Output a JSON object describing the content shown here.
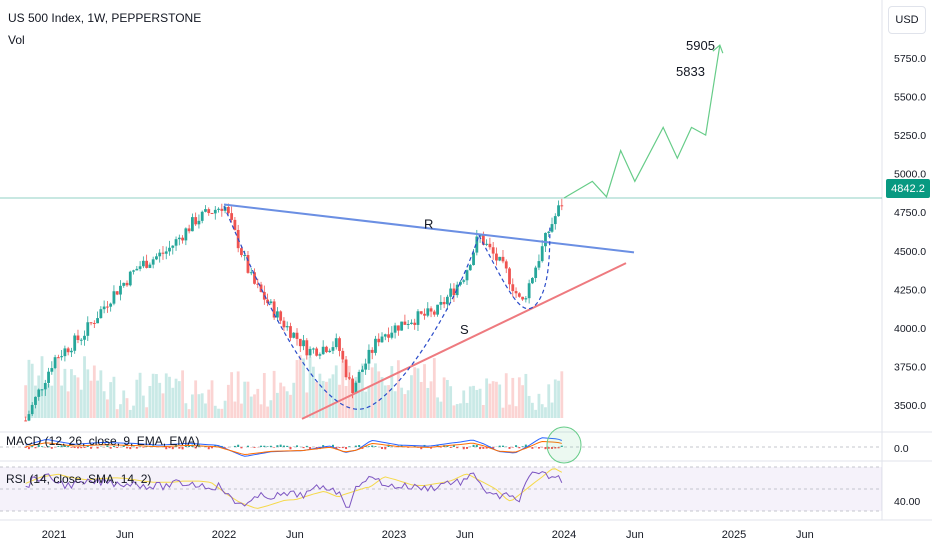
{
  "header": {
    "symbol_title": "US 500 Index, 1W, PEPPERSTONE",
    "volume_label": "Vol",
    "currency": "USD"
  },
  "colors": {
    "up": "#26a69a",
    "down": "#ef5350",
    "resistance": "#6b8fe3",
    "support": "#ee7a7f",
    "cup": "#2b4cc9",
    "projection": "#66cc88",
    "last_price": "#089981"
  },
  "indicators": {
    "macd_label": "MACD (12, 26, close, 9, EMA, EMA)",
    "rsi_label": "RSI (14, close, SMA, 14, 2)"
  },
  "chart_data": {
    "type": "candlestick",
    "symbol": "US 500 Index",
    "interval": "1W",
    "ylim": [
      3300,
      5950
    ],
    "y_ticks": [
      "5750.0",
      "5500.0",
      "5250.0",
      "5000.0",
      "4750.0",
      "4500.0",
      "4250.0",
      "4000.0",
      "3750.0",
      "3500.0"
    ],
    "x_ticks": [
      "2021",
      "Jun",
      "2022",
      "Jun",
      "2023",
      "Jun",
      "2024",
      "Jun",
      "2025",
      "Jun"
    ],
    "last_price": "4842.2",
    "annotations": {
      "resistance_label": "R",
      "support_label": "S",
      "target_1": "5905",
      "target_2": "5833"
    },
    "price_path": [
      [
        "2020-11",
        3400
      ],
      [
        "2021-01",
        3800
      ],
      [
        "2021-03",
        3950
      ],
      [
        "2021-05",
        4200
      ],
      [
        "2021-07",
        4400
      ],
      [
        "2021-09",
        4500
      ],
      [
        "2021-11",
        4700
      ],
      [
        "2022-01",
        4800
      ],
      [
        "2022-03",
        4300
      ],
      [
        "2022-05",
        4050
      ],
      [
        "2022-07",
        3850
      ],
      [
        "2022-09",
        3900
      ],
      [
        "2022-10",
        3600
      ],
      [
        "2022-12",
        3950
      ],
      [
        "2023-02",
        4050
      ],
      [
        "2023-04",
        4100
      ],
      [
        "2023-06",
        4350
      ],
      [
        "2023-07",
        4600
      ],
      [
        "2023-09",
        4350
      ],
      [
        "2023-10",
        4150
      ],
      [
        "2023-12",
        4650
      ],
      [
        "2024-01",
        4842
      ]
    ],
    "projection_path": [
      [
        "2024-01",
        4842
      ],
      [
        "2024-03",
        4950
      ],
      [
        "2024-04",
        4850
      ],
      [
        "2024-05",
        5150
      ],
      [
        "2024-06",
        4950
      ],
      [
        "2024-08",
        5300
      ],
      [
        "2024-09",
        5100
      ],
      [
        "2024-10",
        5300
      ],
      [
        "2024-11",
        5250
      ],
      [
        "2024-12",
        5833
      ]
    ],
    "indicator_panes": {
      "macd": {
        "zero_tick": "0.0"
      },
      "rsi": {
        "tick": "40.00"
      }
    }
  }
}
